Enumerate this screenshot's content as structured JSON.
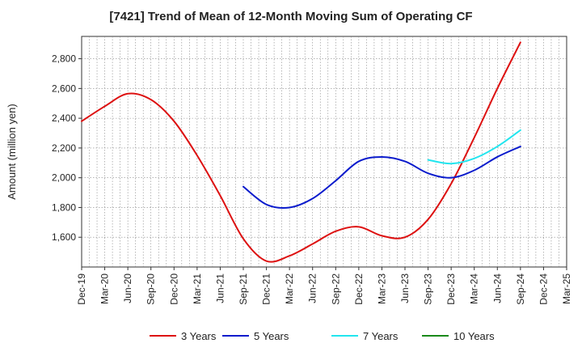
{
  "chart_data": {
    "type": "line",
    "title": "[7421]  Trend of Mean of 12-Month Moving Sum of Operating CF",
    "xlabel": "",
    "ylabel": "Amount (million yen)",
    "ylim": [
      1400,
      2950
    ],
    "yticks": [
      1600,
      1800,
      2000,
      2200,
      2400,
      2600,
      2800
    ],
    "ytick_labels": [
      "1,600",
      "1,800",
      "2,000",
      "2,200",
      "2,400",
      "2,600",
      "2,800"
    ],
    "categories": [
      "Dec-19",
      "Mar-20",
      "Jun-20",
      "Sep-20",
      "Dec-20",
      "Mar-21",
      "Jun-21",
      "Sep-21",
      "Dec-21",
      "Mar-22",
      "Jun-22",
      "Sep-22",
      "Dec-22",
      "Mar-23",
      "Jun-23",
      "Sep-23",
      "Dec-23",
      "Mar-24",
      "Jun-24",
      "Sep-24",
      "Dec-24",
      "Mar-25"
    ],
    "grid": true,
    "legend_position": "bottom",
    "series": [
      {
        "name": "3 Years",
        "color": "#dd1111",
        "values": [
          2380,
          2480,
          2565,
          2525,
          2380,
          2150,
          1880,
          1590,
          1440,
          1475,
          1555,
          1640,
          1670,
          1610,
          1600,
          1720,
          1960,
          2270,
          2600,
          2910,
          null,
          null
        ]
      },
      {
        "name": "5 Years",
        "color": "#0a1bcc",
        "values": [
          null,
          null,
          null,
          null,
          null,
          null,
          null,
          1940,
          1820,
          1800,
          1860,
          1980,
          2110,
          2140,
          2110,
          2030,
          2000,
          2050,
          2140,
          2210,
          null,
          null
        ]
      },
      {
        "name": "7 Years",
        "color": "#22e5ee",
        "values": [
          null,
          null,
          null,
          null,
          null,
          null,
          null,
          null,
          null,
          null,
          null,
          null,
          null,
          null,
          null,
          2120,
          2095,
          2130,
          2210,
          2320,
          null,
          null
        ]
      },
      {
        "name": "10 Years",
        "color": "#1a8a1a",
        "values": [
          null,
          null,
          null,
          null,
          null,
          null,
          null,
          null,
          null,
          null,
          null,
          null,
          null,
          null,
          null,
          null,
          null,
          null,
          null,
          null,
          null,
          null
        ]
      }
    ]
  }
}
